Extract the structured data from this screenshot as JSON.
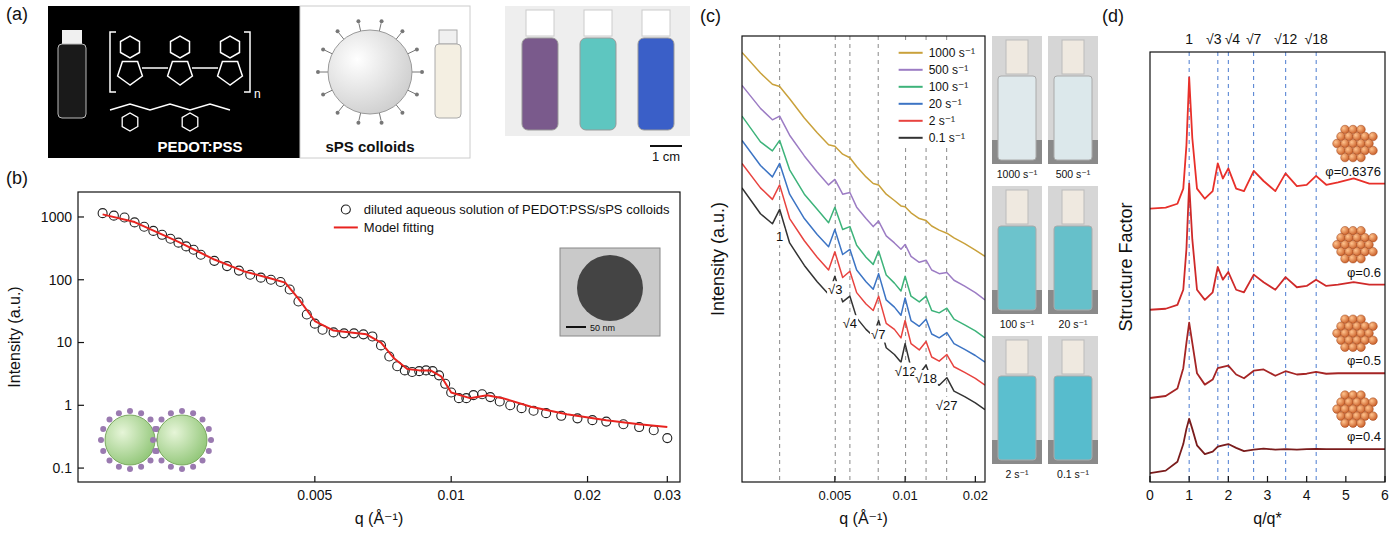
{
  "figure": {
    "panel_labels": [
      "(a)",
      "(b)",
      "(c)",
      "(d)"
    ],
    "panel_a": {
      "left_label": "PEDOT:PSS",
      "right_label": "sPS colloids",
      "repeat_unit": "n",
      "scale_bar": "1 cm"
    }
  },
  "chart_data": [
    {
      "type": "scatter",
      "xlabel": "q (Å⁻¹)",
      "ylabel": "Intensity (a.u.)",
      "log": true,
      "xlim": [
        0.0015,
        0.032
      ],
      "ylim": [
        0.06,
        2500
      ],
      "xticks": [
        0.005,
        0.01,
        0.02,
        0.03
      ],
      "yticks": [
        0.1,
        1,
        10,
        100,
        1000
      ],
      "legend": "upper right",
      "annotations": [
        "50 nm"
      ],
      "series": [
        {
          "name": "diluted aqueous solution of PEDOT:PSS/sPS colloids",
          "type": "scatter",
          "marker": "circle",
          "color": "#222222",
          "x": [
            0.0017,
            0.0018,
            0.0019,
            0.002,
            0.0021,
            0.0022,
            0.0023,
            0.0024,
            0.0025,
            0.0026,
            0.0027,
            0.0028,
            0.003,
            0.0032,
            0.0034,
            0.0036,
            0.0038,
            0.004,
            0.0042,
            0.0044,
            0.0046,
            0.0048,
            0.005,
            0.0052,
            0.0055,
            0.0058,
            0.0061,
            0.0064,
            0.0067,
            0.007,
            0.0073,
            0.0076,
            0.0079,
            0.0082,
            0.0085,
            0.0088,
            0.0091,
            0.0094,
            0.0097,
            0.01,
            0.0104,
            0.0108,
            0.0112,
            0.0117,
            0.0122,
            0.0128,
            0.0135,
            0.0143,
            0.0152,
            0.0162,
            0.0175,
            0.019,
            0.0205,
            0.022,
            0.024,
            0.026,
            0.028,
            0.03
          ],
          "values": [
            1150,
            1050,
            980,
            820,
            700,
            600,
            520,
            450,
            390,
            340,
            300,
            250,
            200,
            165,
            140,
            120,
            108,
            100,
            92,
            70,
            45,
            28,
            20,
            16,
            14.5,
            14,
            14,
            13.5,
            12.5,
            9,
            6,
            4.2,
            3.6,
            3.4,
            3.5,
            3.6,
            3.5,
            3.0,
            2.2,
            1.6,
            1.3,
            1.3,
            1.45,
            1.5,
            1.35,
            1.15,
            1.0,
            0.9,
            0.82,
            0.75,
            0.68,
            0.62,
            0.58,
            0.55,
            0.5,
            0.45,
            0.4,
            0.3
          ]
        },
        {
          "name": "Model fitting",
          "type": "line",
          "color": "#e8231f",
          "x": [
            0.0017,
            0.002,
            0.0025,
            0.003,
            0.0035,
            0.004,
            0.0043,
            0.0046,
            0.005,
            0.0055,
            0.006,
            0.0065,
            0.007,
            0.0075,
            0.008,
            0.0085,
            0.009,
            0.0095,
            0.01,
            0.011,
            0.012,
            0.013,
            0.015,
            0.018,
            0.022,
            0.026,
            0.03
          ],
          "values": [
            1100,
            830,
            400,
            210,
            135,
            105,
            90,
            50,
            22,
            15.5,
            14.5,
            13.5,
            10,
            5.5,
            3.8,
            3.6,
            3.6,
            2.9,
            1.6,
            1.3,
            1.45,
            1.3,
            0.95,
            0.72,
            0.58,
            0.5,
            0.45
          ]
        }
      ]
    },
    {
      "type": "line",
      "xlabel": "q (Å⁻¹)",
      "ylabel": "Intensity (a.u.)",
      "log": true,
      "xlim": [
        0.002,
        0.022
      ],
      "ylim": [
        0.15,
        250
      ],
      "xticks": [
        0.005,
        0.01,
        0.02
      ],
      "tick_labels": "x",
      "legend": "upper right",
      "x": [
        0.002,
        0.0024,
        0.0027,
        0.0029,
        0.0032,
        0.0037,
        0.0042,
        0.0047,
        0.005,
        0.0054,
        0.0058,
        0.0062,
        0.0068,
        0.0073,
        0.0077,
        0.0083,
        0.009,
        0.0096,
        0.01,
        0.0106,
        0.0115,
        0.0123,
        0.013,
        0.014,
        0.0151,
        0.0162,
        0.018,
        0.02,
        0.022
      ],
      "series": [
        {
          "name": "1000 s⁻¹",
          "color": "#c9a13b",
          "values": [
            190,
            135,
            112,
            108,
            88,
            64,
            50,
            41,
            40,
            35,
            33,
            28.5,
            24,
            21.5,
            21,
            18,
            16.2,
            14.8,
            14.6,
            13.2,
            12.0,
            11.6,
            10.6,
            9.9,
            9.4,
            8.7,
            7.9,
            7.1,
            6.4
          ]
        },
        {
          "name": "500 s⁻¹",
          "color": "#9c7cc4",
          "values": [
            110,
            75,
            62,
            66,
            48,
            34,
            26,
            21,
            23,
            18,
            18.5,
            14.5,
            12,
            10.5,
            11.5,
            9,
            8,
            7.2,
            7.8,
            6.4,
            5.8,
            6.0,
            5.1,
            4.8,
            4.9,
            4.3,
            3.9,
            3.5,
            3.1
          ]
        },
        {
          "name": "100 s⁻¹",
          "color": "#3db37a",
          "values": [
            66,
            43,
            37,
            44,
            27,
            18,
            14,
            11.2,
            14.5,
            10,
            10.5,
            7.7,
            6.3,
            5.6,
            7,
            4.7,
            4.1,
            3.6,
            4.6,
            3.3,
            3.0,
            3.3,
            2.6,
            2.5,
            2.7,
            2.25,
            2.05,
            1.85,
            1.65
          ]
        },
        {
          "name": "20 s⁻¹",
          "color": "#3c74c4",
          "values": [
            44,
            29,
            24,
            30,
            18,
            12,
            9.2,
            7.5,
            10,
            6.6,
            7.2,
            5.1,
            4.2,
            3.7,
            4.8,
            3.1,
            2.75,
            2.4,
            3.2,
            2.2,
            2.0,
            2.25,
            1.76,
            1.65,
            1.8,
            1.5,
            1.36,
            1.23,
            1.1
          ]
        },
        {
          "name": "2 s⁻¹",
          "color": "#e8433f",
          "values": [
            30,
            20,
            16.5,
            21,
            12,
            8.3,
            6.3,
            5.1,
            6.9,
            4.5,
            5.0,
            3.5,
            2.9,
            2.6,
            3.3,
            2.1,
            1.9,
            1.65,
            2.2,
            1.5,
            1.35,
            1.55,
            1.2,
            1.12,
            1.25,
            1.02,
            0.93,
            0.84,
            0.75
          ]
        },
        {
          "name": "0.1 s⁻¹",
          "color": "#333333",
          "values": [
            20,
            13,
            11,
            14,
            8,
            5.5,
            4.2,
            3.4,
            4.6,
            3.0,
            3.3,
            2.3,
            1.9,
            1.7,
            2.2,
            1.4,
            1.25,
            1.1,
            1.5,
            1.0,
            0.9,
            1.05,
            0.8,
            0.75,
            0.85,
            0.68,
            0.62,
            0.56,
            0.5
          ]
        }
      ],
      "annotations": [
        {
          "x": 0.0029,
          "label": "1"
        },
        {
          "x": 0.00502,
          "label": "√3"
        },
        {
          "x": 0.0058,
          "label": "√4"
        },
        {
          "x": 0.00767,
          "label": "√7"
        },
        {
          "x": 0.01005,
          "label": "√12"
        },
        {
          "x": 0.0123,
          "label": "√18"
        },
        {
          "x": 0.01507,
          "label": "√27"
        }
      ]
    },
    {
      "type": "line",
      "xlabel": "q/q*",
      "ylabel": "Structure Factor",
      "xlim": [
        0,
        6
      ],
      "ylim": [
        0,
        17
      ],
      "xticks": [
        0,
        1,
        2,
        3,
        4,
        5,
        6
      ],
      "tick_labels": "x",
      "x": [
        0,
        0.4,
        0.7,
        0.85,
        0.93,
        1.0,
        1.08,
        1.2,
        1.4,
        1.6,
        1.73,
        1.86,
        2.0,
        2.2,
        2.4,
        2.65,
        2.9,
        3.2,
        3.46,
        3.75,
        4.0,
        4.24,
        4.5,
        4.8,
        5.2,
        5.6,
        6.0
      ],
      "series": [
        {
          "name": "φ=0.6376",
          "color": "#e8302a",
          "values": [
            10.81,
            10.85,
            11.0,
            11.6,
            13.3,
            16.0,
            13.6,
            11.6,
            11.2,
            11.5,
            12.6,
            12.0,
            12.4,
            11.6,
            11.5,
            12.3,
            11.9,
            11.5,
            12.2,
            11.7,
            11.75,
            12.1,
            11.75,
            11.85,
            12.0,
            11.8,
            11.8
          ]
        },
        {
          "name": "φ=0.6",
          "color": "#cf2a2a",
          "values": [
            6.81,
            6.85,
            7.0,
            7.6,
            9.2,
            11.8,
            9.6,
            7.6,
            7.2,
            7.5,
            8.5,
            8.0,
            8.3,
            7.6,
            7.5,
            8.2,
            7.9,
            7.6,
            8.1,
            7.7,
            7.75,
            8.0,
            7.75,
            7.8,
            7.9,
            7.8,
            7.8
          ]
        },
        {
          "name": "φ=0.5",
          "color": "#a52525",
          "values": [
            3.32,
            3.4,
            3.7,
            4.5,
            5.5,
            6.3,
            5.5,
            4.3,
            3.85,
            4.05,
            4.5,
            4.55,
            4.6,
            4.25,
            4.1,
            4.4,
            4.45,
            4.2,
            4.38,
            4.25,
            4.28,
            4.35,
            4.28,
            4.3,
            4.3,
            4.3,
            4.3
          ]
        },
        {
          "name": "φ=0.4",
          "color": "#7a1c1c",
          "values": [
            0.35,
            0.45,
            0.8,
            1.5,
            2.1,
            2.5,
            2.1,
            1.45,
            1.1,
            1.2,
            1.4,
            1.45,
            1.5,
            1.35,
            1.22,
            1.28,
            1.32,
            1.28,
            1.3,
            1.28,
            1.3,
            1.31,
            1.3,
            1.3,
            1.3,
            1.3,
            1.3
          ]
        }
      ],
      "annotations": [
        {
          "x": 1,
          "label": "1"
        },
        {
          "x": 1.732,
          "label": "√3"
        },
        {
          "x": 2,
          "label": "√4"
        },
        {
          "x": 2.646,
          "label": "√7"
        },
        {
          "x": 3.464,
          "label": "√12"
        },
        {
          "x": 4.243,
          "label": "√18"
        }
      ]
    }
  ]
}
